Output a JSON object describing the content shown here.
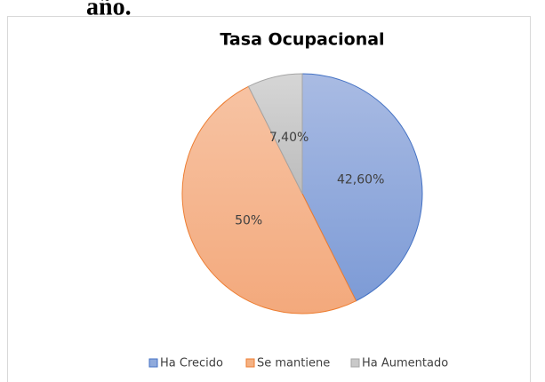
{
  "document_text": "año.",
  "chart_data": {
    "type": "pie",
    "title": "Tasa Ocupacional",
    "categories": [
      "Ha Crecido",
      "Se mantiene",
      "Ha Aumentado"
    ],
    "values": [
      42.6,
      50,
      7.4
    ],
    "value_labels": [
      "42,60%",
      "50%",
      "7,40%"
    ],
    "colors": [
      "#8faadc",
      "#f4b183",
      "#c9c9c9"
    ],
    "legend": "bottom"
  }
}
